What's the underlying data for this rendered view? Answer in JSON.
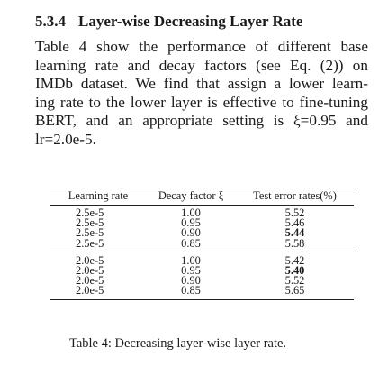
{
  "section": {
    "number": "5.3.4",
    "title": "Layer-wise Decreasing Layer Rate"
  },
  "paragraph": {
    "lines": [
      "Table 4 show the performance of different base",
      "learning rate and decay factors (see Eq.  (2)) on",
      "IMDb dataset.  We find that assign a lower learn-",
      "ing rate to the lower layer is effective to fine-tuning",
      "BERT, and an appropriate setting is ξ=0.95 and",
      "lr=2.0e-5."
    ]
  },
  "table": {
    "headers": [
      "Learning rate",
      "Decay factor ξ",
      "Test error rates(%)"
    ],
    "groups": [
      {
        "rows": [
          {
            "lr": "2.5e-5",
            "decay": "1.00",
            "error": "5.52",
            "best": false
          },
          {
            "lr": "2.5e-5",
            "decay": "0.95",
            "error": "5.46",
            "best": false
          },
          {
            "lr": "2.5e-5",
            "decay": "0.90",
            "error": "5.44",
            "best": true
          },
          {
            "lr": "2.5e-5",
            "decay": "0.85",
            "error": "5.58",
            "best": false
          }
        ]
      },
      {
        "rows": [
          {
            "lr": "2.0e-5",
            "decay": "1.00",
            "error": "5.42",
            "best": false
          },
          {
            "lr": "2.0e-5",
            "decay": "0.95",
            "error": "5.40",
            "best": true
          },
          {
            "lr": "2.0e-5",
            "decay": "0.90",
            "error": "5.52",
            "best": false
          },
          {
            "lr": "2.0e-5",
            "decay": "0.85",
            "error": "5.65",
            "best": false
          }
        ]
      }
    ]
  },
  "caption": "Table 4: Decreasing layer-wise layer rate."
}
